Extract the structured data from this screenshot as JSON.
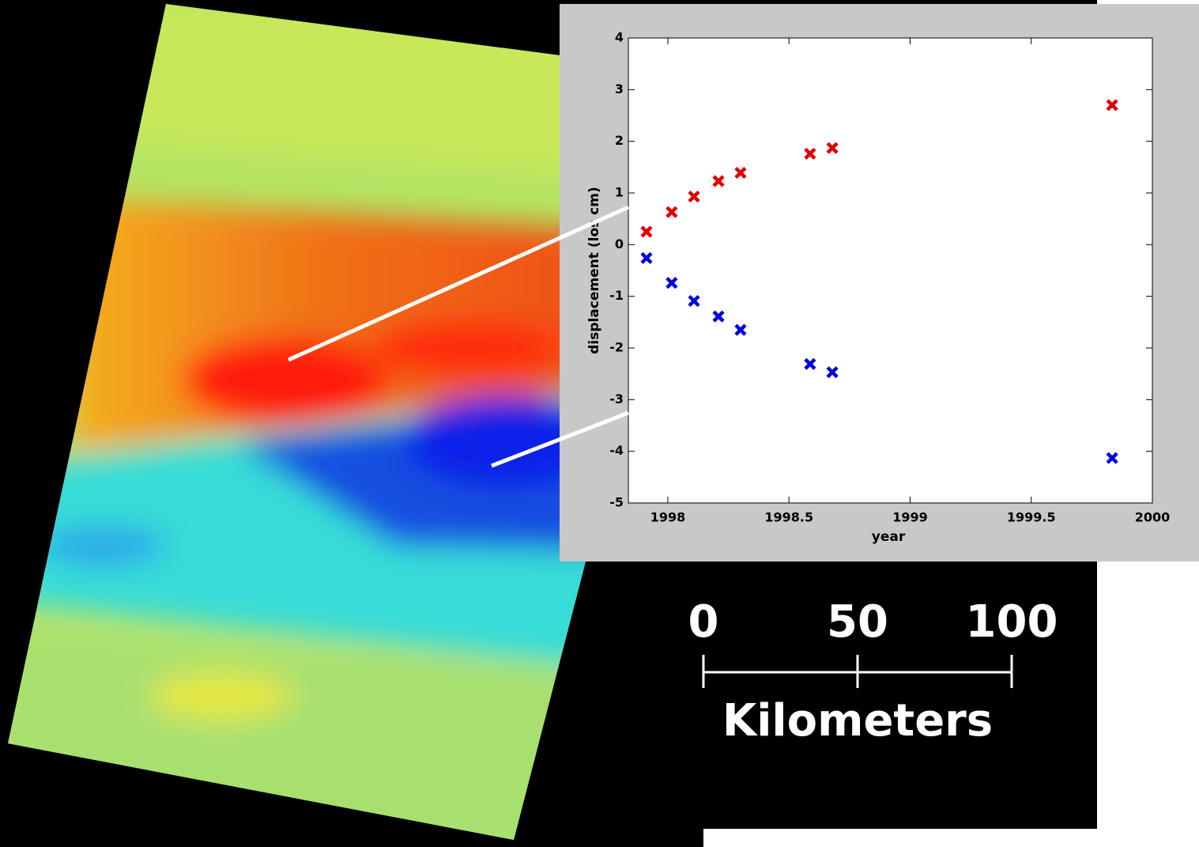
{
  "chart_data": {
    "type": "scatter",
    "xlabel": "year",
    "ylabel": "displacement (los cm)",
    "xlim": [
      1997.837,
      2000
    ],
    "ylim": [
      -5,
      4
    ],
    "xticks": [
      1998,
      1998.5,
      1999,
      1999.5,
      2000
    ],
    "yticks": [
      -5,
      -4,
      -3,
      -2,
      -1,
      0,
      1,
      2,
      3,
      4
    ],
    "grid": false,
    "series": [
      {
        "color": "#e00000",
        "x": [
          1997.912,
          1998.016,
          1998.108,
          1998.209,
          1998.3,
          1998.587,
          1998.679,
          1999.834
        ],
        "values": [
          0.25,
          0.63,
          0.93,
          1.23,
          1.39,
          1.76,
          1.87,
          2.7
        ]
      },
      {
        "color": "#0000e0",
        "x": [
          1997.912,
          1998.016,
          1998.108,
          1998.209,
          1998.3,
          1998.587,
          1998.679,
          1999.834
        ],
        "values": [
          -0.26,
          -0.74,
          -1.09,
          -1.39,
          -1.65,
          -2.31,
          -2.47,
          -4.13
        ]
      }
    ]
  },
  "scale_bar": {
    "ticks": [
      0,
      50,
      100
    ],
    "label": "Kilometers"
  }
}
